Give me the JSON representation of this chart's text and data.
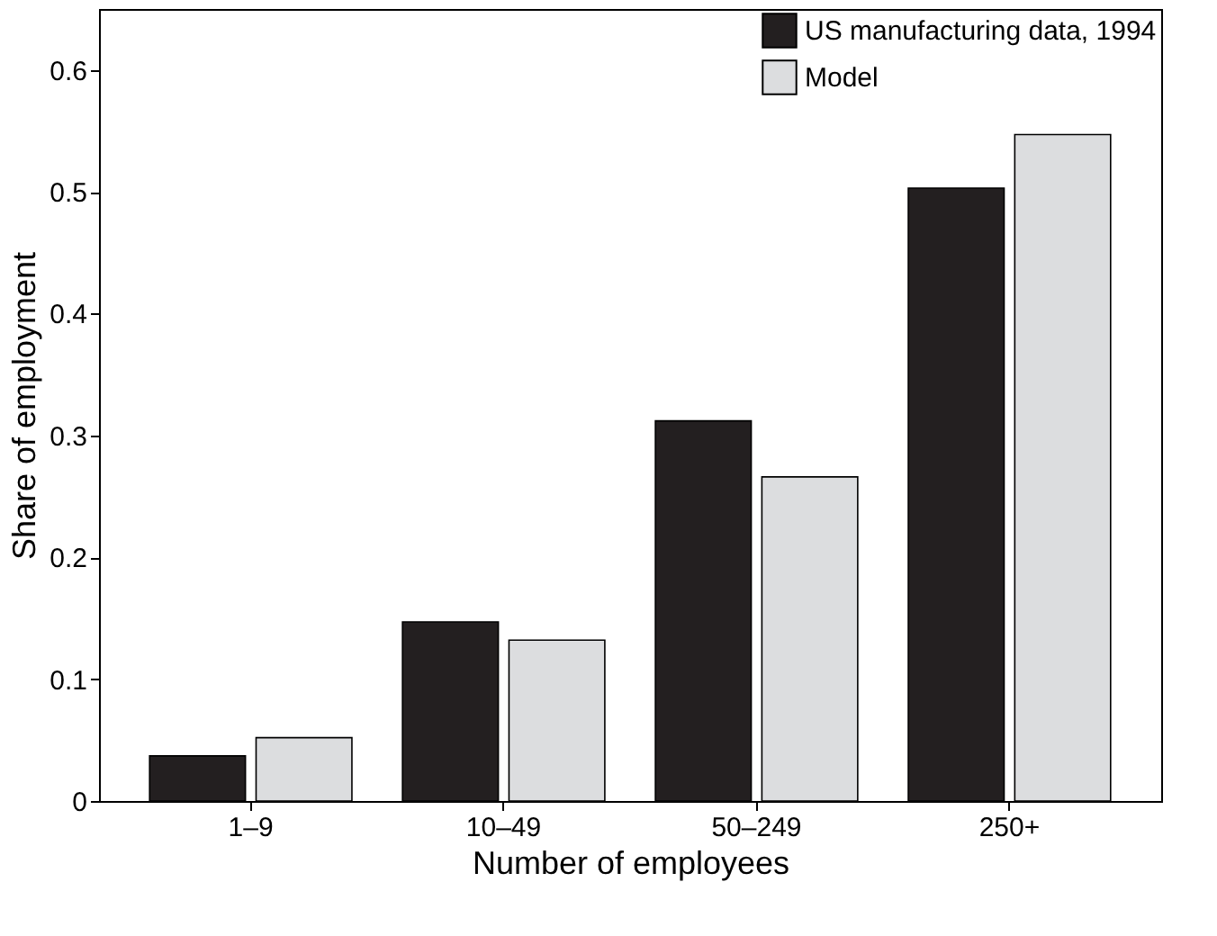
{
  "chart_data": {
    "type": "bar",
    "xlabel": "Number of employees",
    "ylabel": "Share of employment",
    "categories": [
      "1–9",
      "10–49",
      "50–249",
      "250+"
    ],
    "series": [
      {
        "name": "US manufacturing data, 1994",
        "color": "#231f20",
        "values": [
          0.037,
          0.147,
          0.312,
          0.503
        ]
      },
      {
        "name": "Model",
        "color": "#dcdddf",
        "values": [
          0.052,
          0.132,
          0.266,
          0.547
        ]
      }
    ],
    "ylim": [
      0,
      0.65
    ],
    "yticks": [
      0,
      0.1,
      0.2,
      0.3,
      0.4,
      0.5,
      0.6
    ],
    "grid": false,
    "legend": "top right"
  }
}
